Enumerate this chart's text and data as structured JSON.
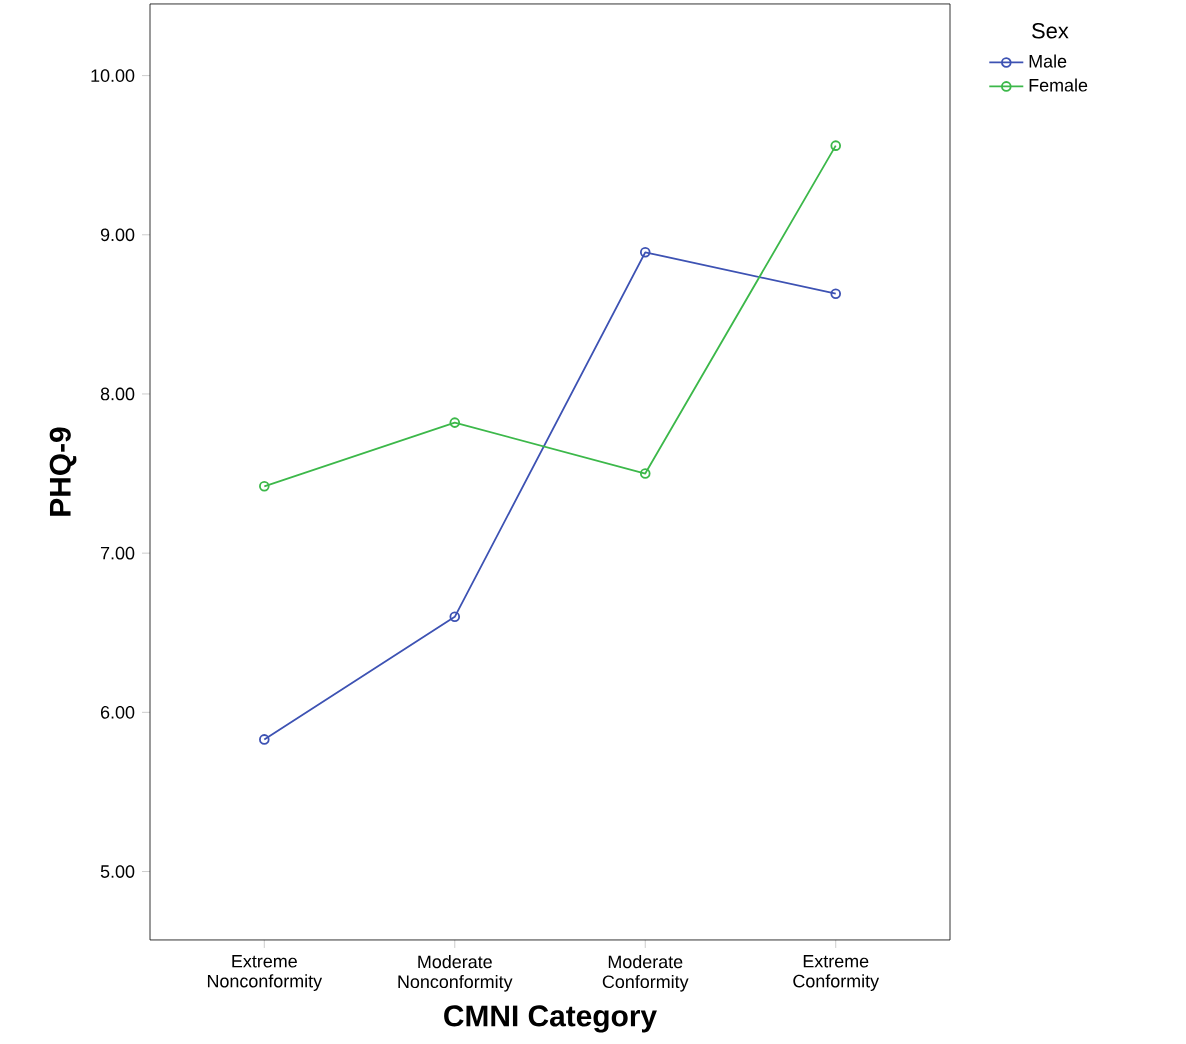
{
  "chart_data": {
    "type": "line",
    "xlabel": "CMNI Category",
    "ylabel": "PHQ-9",
    "legend_title": "Sex",
    "legend": "top right",
    "marker": "circle",
    "line_style": "solid",
    "grid": false,
    "categories": [
      "Extreme Nonconformity",
      "Moderate Nonconformity",
      "Moderate Conformity",
      "Extreme Conformity"
    ],
    "series": [
      {
        "name": "Male",
        "color": "#3d52b3",
        "values": [
          5.83,
          6.6,
          8.89,
          8.63
        ]
      },
      {
        "name": "Female",
        "color": "#3cb84a",
        "values": [
          7.42,
          7.82,
          7.5,
          9.56
        ]
      }
    ],
    "ylim": [
      4.57,
      10.45
    ],
    "yticks": [
      {
        "value": 5,
        "label": "5.00"
      },
      {
        "value": 6,
        "label": "6.00"
      },
      {
        "value": 7,
        "label": "7.00"
      },
      {
        "value": 8,
        "label": "8.00"
      },
      {
        "value": 9,
        "label": "9.00"
      },
      {
        "value": 10,
        "label": "10.00"
      }
    ]
  }
}
